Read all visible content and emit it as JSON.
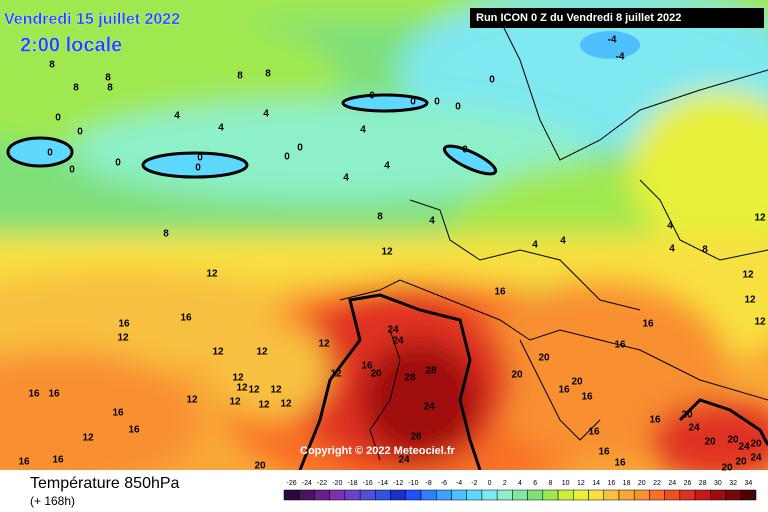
{
  "header": {
    "date": "Vendredi 15 juillet 2022",
    "time": "2:00 locale",
    "run": "Run ICON 0 Z du Vendredi 8 juillet 2022"
  },
  "copyright": "Copyright © 2022 Meteociel.fr",
  "footer": {
    "title": "Température 850hPa",
    "subtitle": "(+ 168h)"
  },
  "legend": {
    "ticks": [
      -26,
      -24,
      -22,
      -20,
      -18,
      -16,
      -14,
      -12,
      -10,
      -8,
      -6,
      -4,
      -2,
      0,
      2,
      4,
      6,
      8,
      10,
      12,
      14,
      16,
      18,
      20,
      22,
      24,
      26,
      28,
      30,
      32,
      34
    ],
    "colors": [
      "#2a0a3a",
      "#4b1463",
      "#6a1f8a",
      "#7f2fb0",
      "#6d40c8",
      "#4f4fd8",
      "#2f55e0",
      "#1a2fd0",
      "#1f50ff",
      "#2f7fff",
      "#3fa0ff",
      "#4fc0ff",
      "#5fd8ff",
      "#7fe8f0",
      "#8ef0c8",
      "#7fe8a0",
      "#7fe07a",
      "#a0e84f",
      "#c8f03a",
      "#e8f03a",
      "#f8e040",
      "#f8c040",
      "#f8a838",
      "#f89030",
      "#f87028",
      "#f05020",
      "#e03020",
      "#c81818",
      "#a00c0c",
      "#780808",
      "#4a0404"
    ]
  },
  "contour_labels": [
    8,
    8,
    8,
    8,
    8,
    8,
    0,
    0,
    0,
    0,
    0,
    0,
    0,
    0,
    0,
    0,
    0,
    0,
    0,
    0,
    0,
    -4,
    -4,
    4,
    4,
    4,
    4,
    4,
    4,
    4,
    4,
    4,
    4,
    4,
    8,
    8,
    8,
    12,
    12,
    12,
    12,
    16,
    16,
    16,
    16,
    16,
    16,
    16,
    16,
    16,
    16,
    16,
    16,
    16,
    12,
    12,
    12,
    12,
    12,
    12,
    12,
    12,
    12,
    12,
    12,
    12,
    12,
    12,
    12,
    24,
    24,
    28,
    28,
    24,
    28,
    24,
    20,
    20,
    20,
    20,
    20,
    20,
    20,
    20,
    20,
    20,
    16,
    16,
    16,
    16,
    16,
    20,
    24,
    24,
    24,
    12
  ]
}
